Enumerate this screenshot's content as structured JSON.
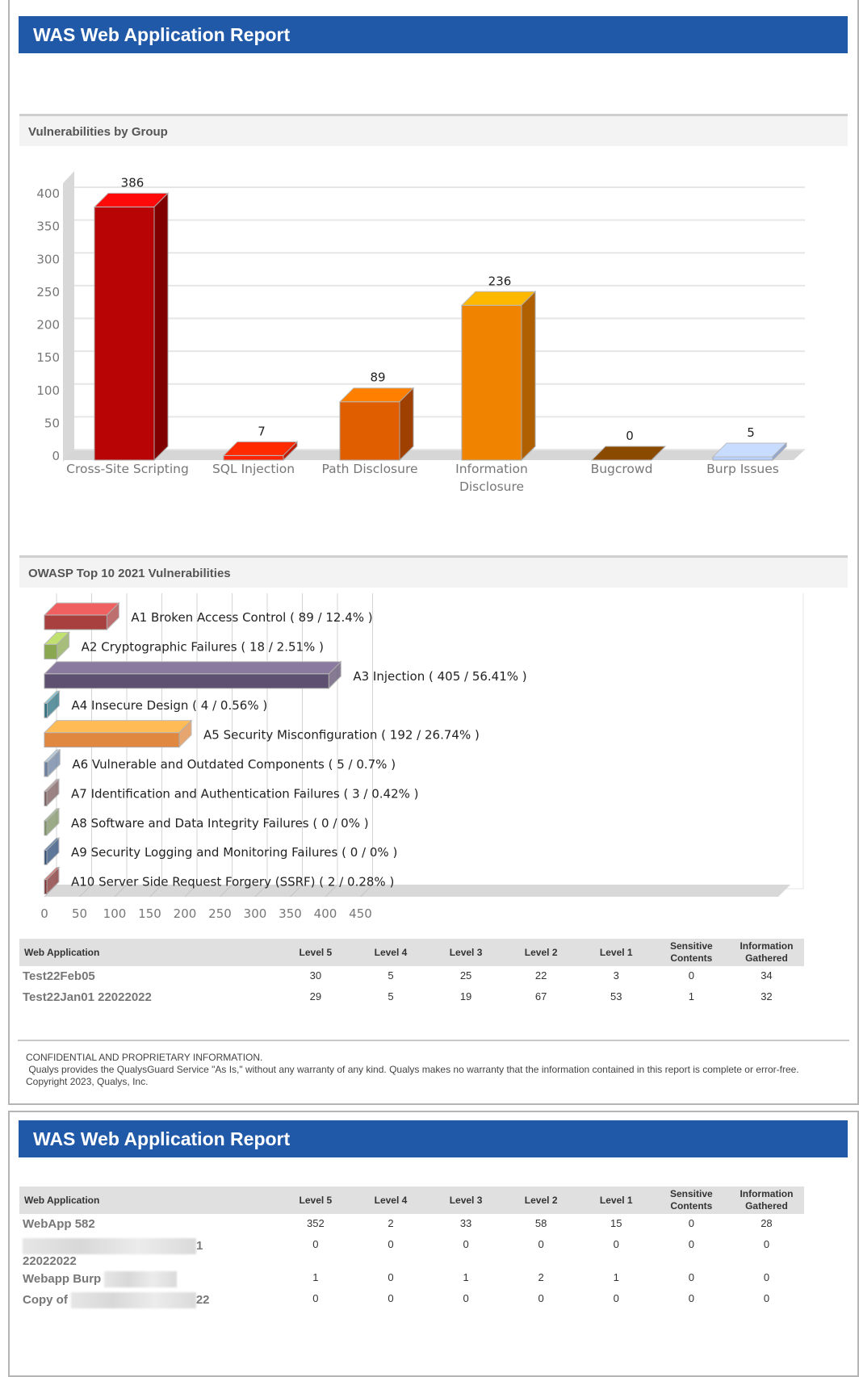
{
  "report_title": "WAS Web Application Report",
  "section1_title": "Vulnerabilities by Group",
  "section2_title": "OWASP Top 10 2021 Vulnerabilities",
  "table_headers": [
    "Web Application",
    "Level 5",
    "Level 4",
    "Level 3",
    "Level 2",
    "Level 1",
    "Sensitive Contents",
    "Information Gathered"
  ],
  "table1_rows": [
    {
      "name": "Test22Feb05",
      "values": [
        "30",
        "5",
        "25",
        "22",
        "3",
        "0",
        "34"
      ]
    },
    {
      "name": "Test22Jan01 22022022",
      "values": [
        "29",
        "5",
        "19",
        "67",
        "53",
        "1",
        "32"
      ]
    }
  ],
  "footer": {
    "line1": "CONFIDENTIAL AND PROPRIETARY INFORMATION.",
    "line2": " Qualys provides the QualysGuard Service \"As Is,\" without any warranty of any kind. Qualys makes no warranty that the information contained in this report is complete or error-free. Copyright 2023, Qualys, Inc."
  },
  "table2_rows": [
    {
      "name": "WebApp 582",
      "name_suffix": "",
      "values": [
        "352",
        "2",
        "33",
        "58",
        "15",
        "0",
        "28"
      ]
    },
    {
      "name": "",
      "name_suffix": "1",
      "name_line2": "22022022",
      "values": [
        "0",
        "0",
        "0",
        "0",
        "0",
        "0",
        "0"
      ]
    },
    {
      "name": "Webapp Burp",
      "name_suffix": "",
      "values": [
        "1",
        "0",
        "1",
        "2",
        "1",
        "0",
        "0"
      ]
    },
    {
      "name": "Copy of",
      "name_suffix": "22",
      "values": [
        "0",
        "0",
        "0",
        "0",
        "0",
        "0",
        "0"
      ]
    }
  ],
  "chart_data": [
    {
      "type": "bar",
      "categories": [
        "Cross-Site Scripting",
        "SQL Injection",
        "Path Disclosure",
        "Information Disclosure",
        "Bugcrowd",
        "Burp Issues"
      ],
      "values": [
        386,
        7,
        89,
        236,
        0,
        5
      ],
      "ylim": [
        0,
        400
      ],
      "yticks": [
        0,
        50,
        100,
        150,
        200,
        250,
        300,
        350,
        400
      ],
      "grid": true,
      "colors": [
        "#b80404",
        "#ff2200",
        "#e05e00",
        "#f08400",
        "#8a4a00",
        "#b8d0ff"
      ],
      "top_colors": [
        "#ff0a0a",
        "#ff2a00",
        "#ff8000",
        "#ffb800",
        "#8a4a00",
        "#c8dcff"
      ],
      "side_colors": [
        "#800000",
        "#c01800",
        "#a04000",
        "#b06000",
        "#603000",
        "#90a8d8"
      ]
    },
    {
      "type": "bar",
      "orientation": "horizontal",
      "categories": [
        "A1 Broken Access Control",
        "A2 Cryptographic Failures",
        "A3 Injection",
        "A4 Insecure Design",
        "A5 Security Misconfiguration",
        "A6 Vulnerable and Outdated Components",
        "A7 Identification and Authentication Failures",
        "A8 Software and Data Integrity Failures",
        "A9 Security Logging and Monitoring Failures",
        "A10 Server Side Request Forgery (SSRF)"
      ],
      "values": [
        89,
        18,
        405,
        4,
        192,
        5,
        3,
        0,
        0,
        2
      ],
      "percents": [
        "12.4%",
        "2.51%",
        "56.41%",
        "0.56%",
        "26.74%",
        "0.7%",
        "0.42%",
        "0%",
        "0%",
        "0.28%"
      ],
      "xlim": [
        0,
        450
      ],
      "xticks": [
        0,
        50,
        100,
        150,
        200,
        250,
        300,
        350,
        400,
        450
      ],
      "grid": true,
      "colors": [
        "#a84040",
        "#8aa850",
        "#5e5070",
        "#2a7080",
        "#e08840",
        "#6a80a0",
        "#7a5a5a",
        "#7a9060",
        "#2a4a78",
        "#803030"
      ],
      "top_colors": [
        "#f06060",
        "#c0e070",
        "#8a7aa0",
        "#80c8d8",
        "#ffbb55",
        "#b8cce0",
        "#c0a0a0",
        "#a8c090",
        "#5a80b0",
        "#e06060"
      ]
    }
  ]
}
